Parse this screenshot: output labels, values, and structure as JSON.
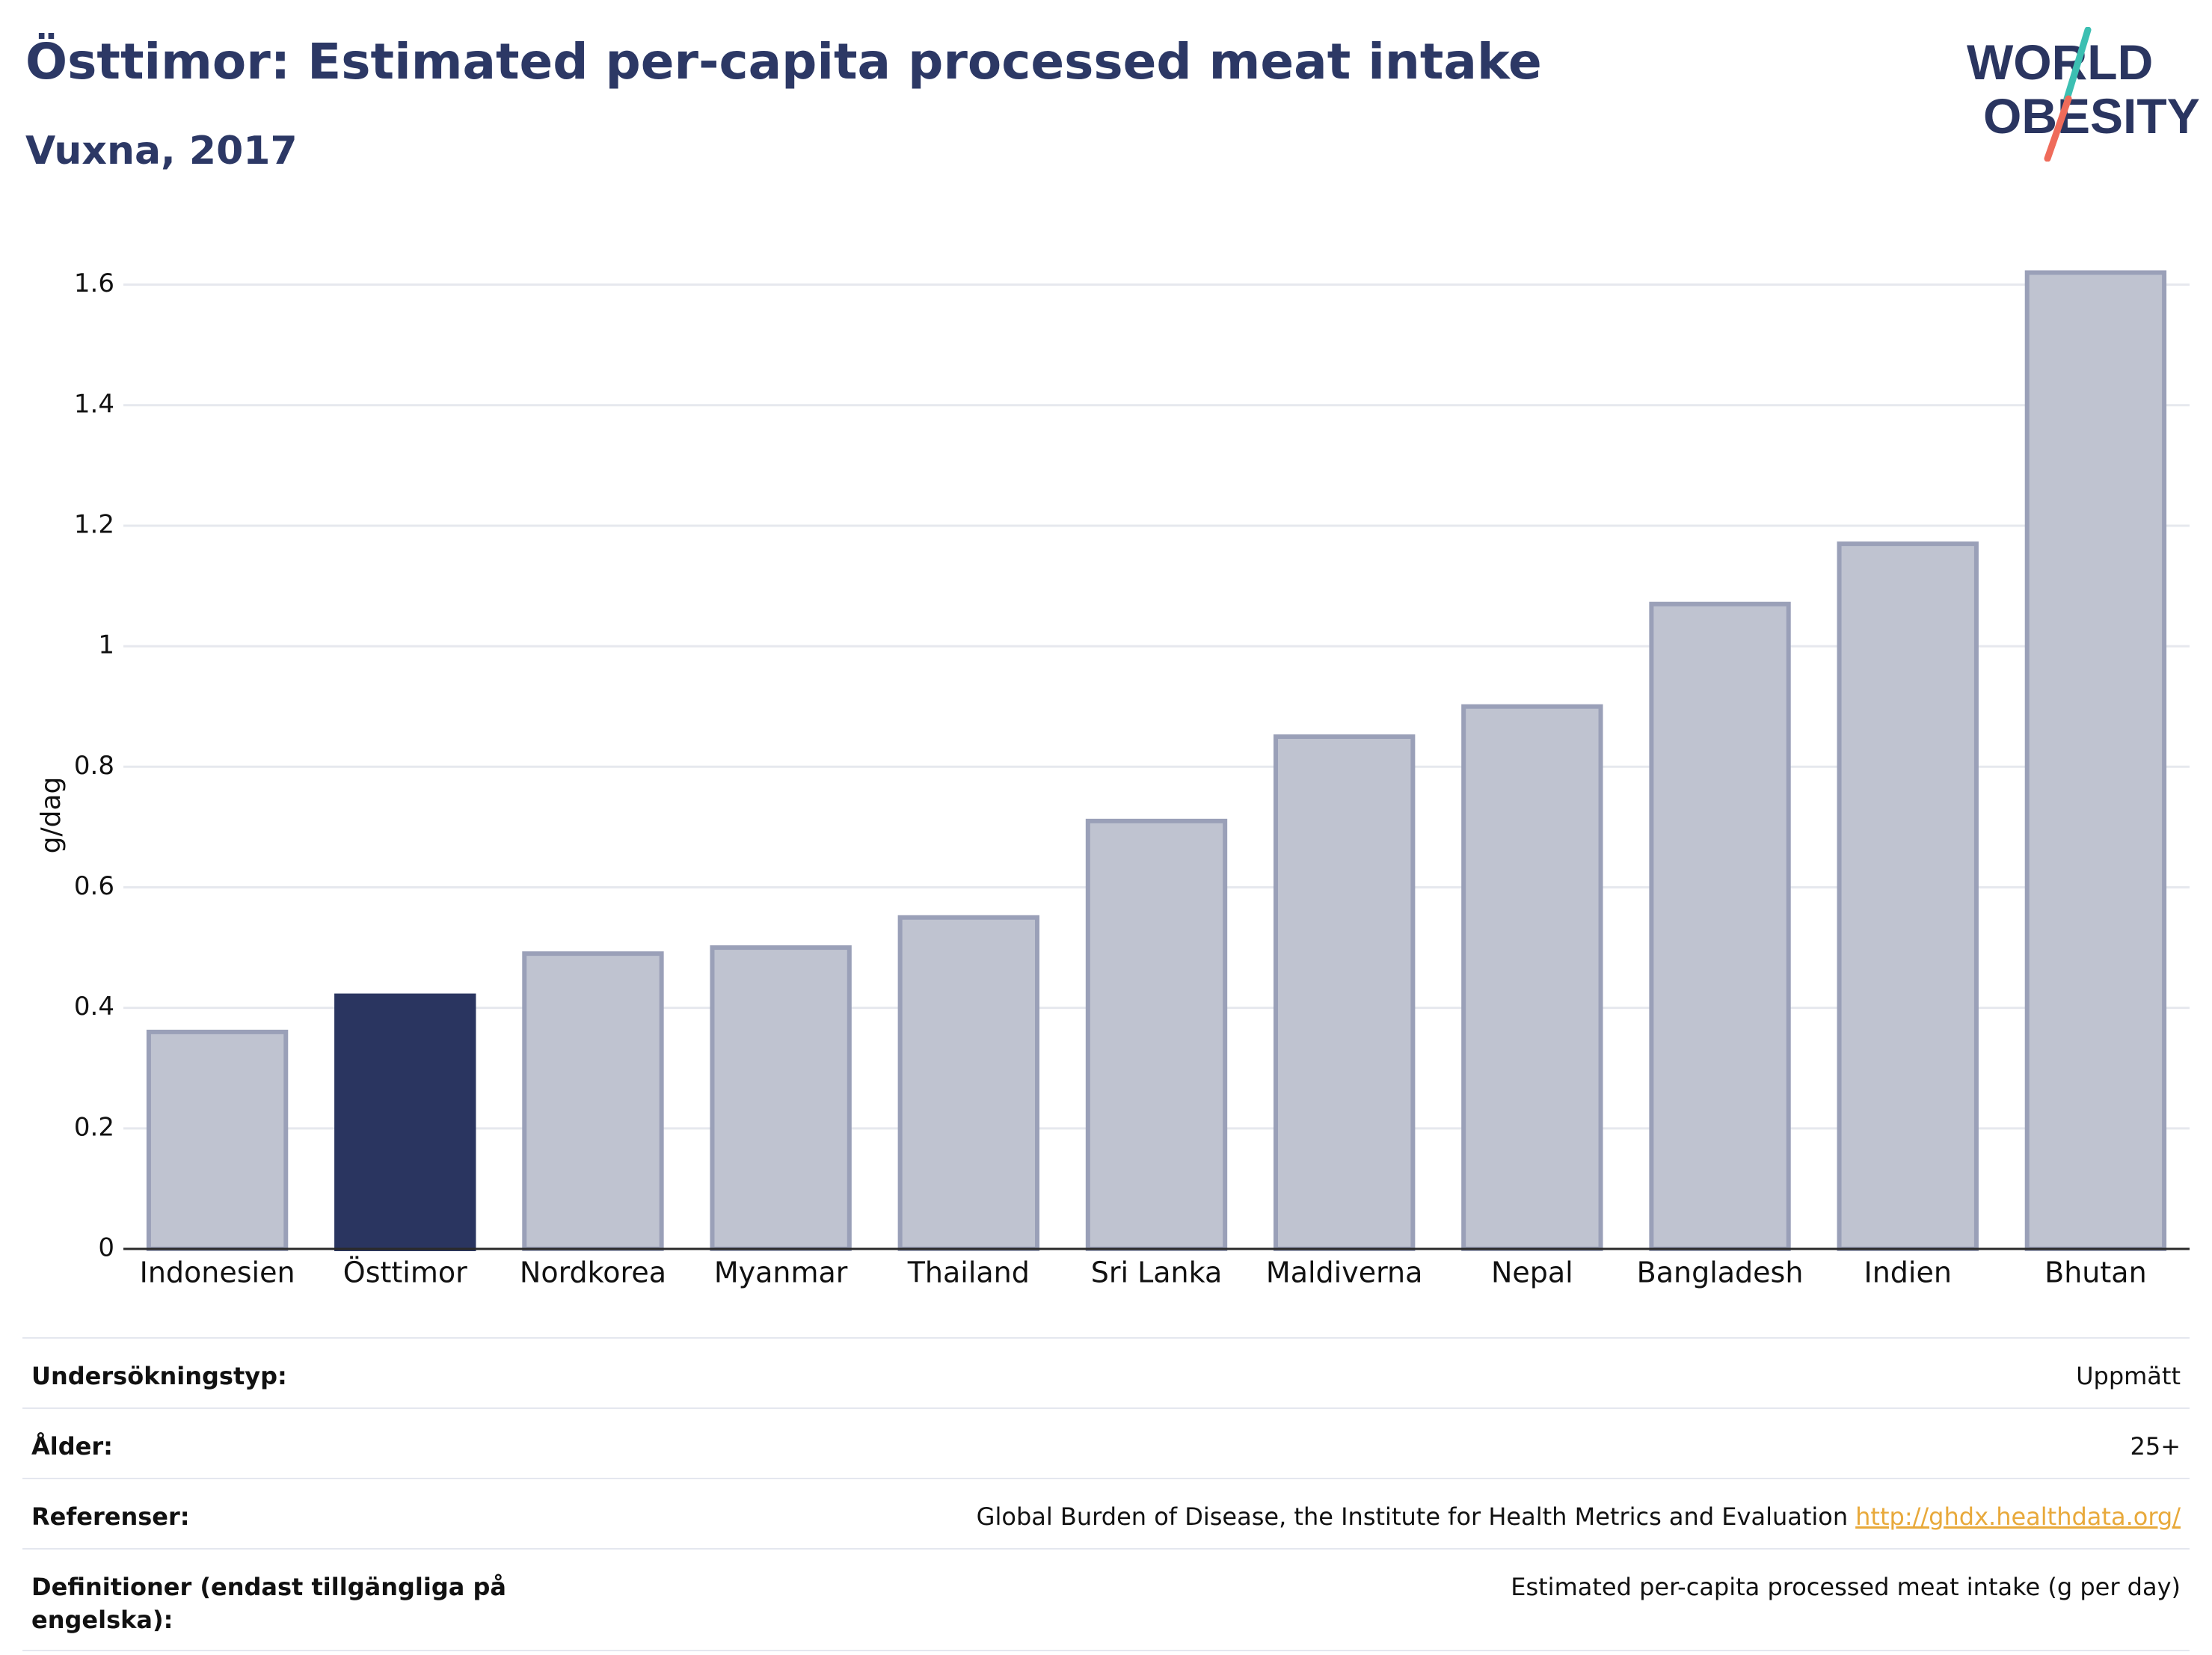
{
  "header": {
    "title": "Östtimor: Estimated per-capita processed meat intake",
    "subtitle": "Vuxna, 2017"
  },
  "logo": {
    "line1": "WORLD",
    "line2": "OBESITY"
  },
  "colors": {
    "highlight": "#2a3560",
    "bar": "#bfc3d0",
    "bar_border": "#9aa0b8",
    "grid": "#e6e8ee",
    "logo_text": "#2a3560",
    "logo_teal": "#3cbfb2",
    "logo_coral": "#ef6b5a",
    "link": "#e8a93b"
  },
  "chart_data": {
    "type": "bar",
    "categories": [
      "Indonesien",
      "Östtimor",
      "Nordkorea",
      "Myanmar",
      "Thailand",
      "Sri Lanka",
      "Maldiverna",
      "Nepal",
      "Bangladesh",
      "Indien",
      "Bhutan"
    ],
    "values": [
      0.36,
      0.42,
      0.49,
      0.5,
      0.55,
      0.71,
      0.85,
      0.9,
      1.07,
      1.17,
      1.62
    ],
    "highlight": "Östtimor",
    "ylabel": "g/dag",
    "ylim": [
      0,
      1.7
    ],
    "yticks": [
      0,
      0.2,
      0.4,
      0.6,
      0.8,
      1,
      1.2,
      1.4,
      1.6
    ],
    "ytick_labels": [
      "0",
      "0.2",
      "0.4",
      "0.6",
      "0.8",
      "1",
      "1.2",
      "1.4",
      "1.6"
    ],
    "grid": true
  },
  "meta": {
    "rows": [
      {
        "key": "Undersökningstyp:",
        "value": "Uppmätt"
      },
      {
        "key": "Ålder:",
        "value": "25+"
      },
      {
        "key": "Referenser:",
        "value": "Global Burden of Disease, the Institute for Health Metrics and Evaluation",
        "link": "http://ghdx.healthdata.org/"
      },
      {
        "key": "Definitioner (endast tillgängliga på engelska):",
        "value": "Estimated per-capita processed meat intake (g per day)"
      }
    ]
  }
}
